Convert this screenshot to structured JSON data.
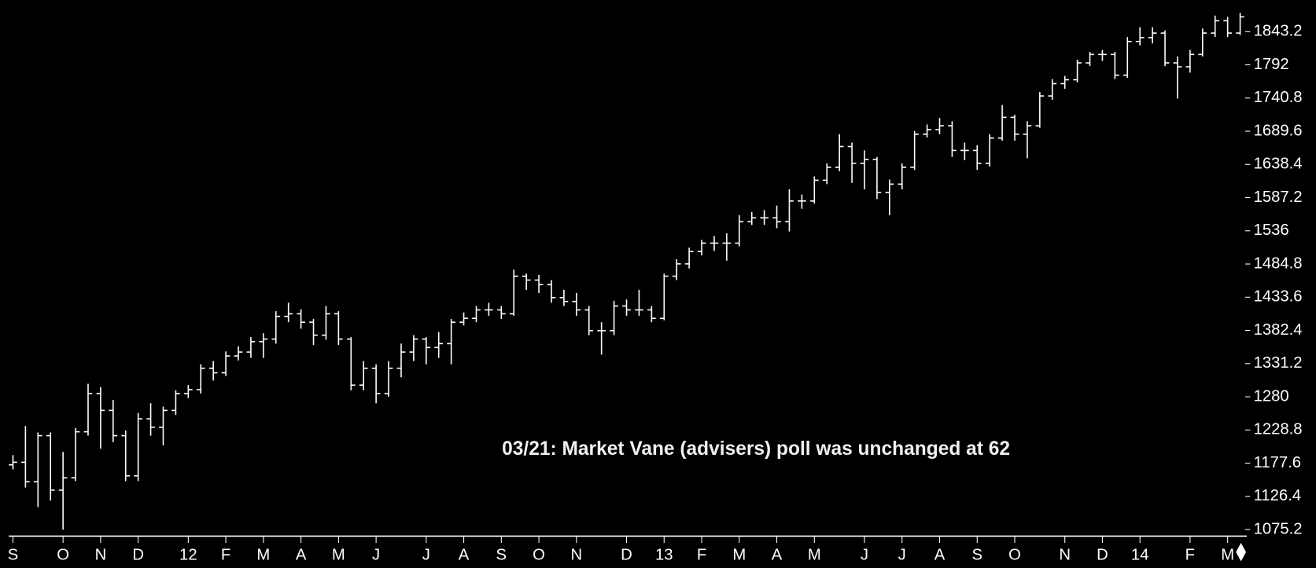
{
  "chart_data": {
    "type": "ohlc",
    "color": "#ffffff",
    "annotation": "03/21: Market Vane (advisers) poll was unchanged at 62",
    "categories": [
      "S",
      null,
      null,
      null,
      "O",
      null,
      null,
      "N",
      null,
      null,
      "D",
      null,
      null,
      null,
      "12",
      null,
      null,
      "F",
      null,
      null,
      "M",
      null,
      null,
      "A",
      null,
      null,
      "M",
      null,
      null,
      "J",
      null,
      null,
      null,
      "J",
      null,
      null,
      "A",
      null,
      null,
      "S",
      null,
      null,
      "O",
      null,
      null,
      "N",
      null,
      null,
      null,
      "D",
      null,
      null,
      "13",
      null,
      null,
      "F",
      null,
      null,
      "M",
      null,
      null,
      "A",
      null,
      null,
      "M",
      null,
      null,
      null,
      "J",
      null,
      null,
      "J",
      null,
      null,
      "A",
      null,
      null,
      "S",
      null,
      null,
      "O",
      null,
      null,
      null,
      "N",
      null,
      null,
      "D",
      null,
      null,
      "14",
      null,
      null,
      null,
      "F",
      null,
      null,
      "M",
      null
    ],
    "open": [
      1175,
      1179,
      1149,
      1220,
      1136,
      1155,
      1226,
      1285,
      1259,
      1220,
      1158,
      1246,
      1233,
      1259,
      1285,
      1291,
      1324,
      1317,
      1343,
      1349,
      1365,
      1369,
      1404,
      1408,
      1395,
      1375,
      1408,
      1369,
      1298,
      1324,
      1285,
      1324,
      1349,
      1369,
      1356,
      1362,
      1395,
      1401,
      1414,
      1414,
      1408,
      1466,
      1460,
      1453,
      1433,
      1427,
      1414,
      1382,
      1382,
      1420,
      1414,
      1414,
      1401,
      1466,
      1485,
      1504,
      1517,
      1517,
      1517,
      1550,
      1556,
      1556,
      1550,
      1582,
      1582,
      1614,
      1634,
      1666,
      1640,
      1646,
      1595,
      1608,
      1634,
      1685,
      1692,
      1698,
      1660,
      1660,
      1640,
      1679,
      1711,
      1685,
      1698,
      1744,
      1763,
      1769,
      1795,
      1808,
      1808,
      1776,
      1828,
      1834,
      1841,
      1795,
      1789,
      1808,
      1841,
      1860,
      1841
    ],
    "high": [
      1190,
      1235,
      1225,
      1225,
      1195,
      1232,
      1300,
      1295,
      1275,
      1228,
      1255,
      1270,
      1265,
      1290,
      1298,
      1330,
      1335,
      1350,
      1358,
      1372,
      1378,
      1412,
      1425,
      1415,
      1400,
      1420,
      1412,
      1372,
      1335,
      1330,
      1335,
      1362,
      1375,
      1372,
      1380,
      1400,
      1410,
      1420,
      1425,
      1420,
      1476,
      1470,
      1468,
      1460,
      1445,
      1440,
      1420,
      1395,
      1428,
      1430,
      1445,
      1420,
      1470,
      1492,
      1510,
      1522,
      1528,
      1532,
      1560,
      1565,
      1568,
      1575,
      1600,
      1592,
      1620,
      1640,
      1685,
      1672,
      1660,
      1650,
      1615,
      1640,
      1690,
      1700,
      1710,
      1705,
      1672,
      1668,
      1685,
      1730,
      1715,
      1705,
      1750,
      1770,
      1775,
      1800,
      1812,
      1815,
      1812,
      1835,
      1850,
      1850,
      1845,
      1805,
      1815,
      1848,
      1868,
      1866,
      1872
    ],
    "low": [
      1168,
      1140,
      1110,
      1120,
      1075,
      1150,
      1220,
      1200,
      1210,
      1150,
      1150,
      1220,
      1205,
      1252,
      1278,
      1285,
      1305,
      1312,
      1336,
      1340,
      1340,
      1362,
      1395,
      1385,
      1360,
      1368,
      1360,
      1290,
      1290,
      1270,
      1280,
      1310,
      1335,
      1330,
      1340,
      1330,
      1390,
      1395,
      1405,
      1400,
      1405,
      1445,
      1440,
      1425,
      1420,
      1405,
      1375,
      1345,
      1375,
      1405,
      1405,
      1395,
      1398,
      1460,
      1478,
      1498,
      1505,
      1490,
      1512,
      1545,
      1545,
      1540,
      1535,
      1570,
      1578,
      1608,
      1628,
      1610,
      1600,
      1585,
      1560,
      1600,
      1630,
      1680,
      1685,
      1650,
      1645,
      1630,
      1635,
      1675,
      1675,
      1648,
      1695,
      1738,
      1755,
      1765,
      1790,
      1798,
      1770,
      1772,
      1822,
      1825,
      1790,
      1740,
      1780,
      1805,
      1835,
      1835,
      1838
    ],
    "close": [
      1179,
      1149,
      1220,
      1136,
      1155,
      1226,
      1285,
      1259,
      1220,
      1158,
      1246,
      1233,
      1259,
      1285,
      1291,
      1324,
      1317,
      1343,
      1349,
      1365,
      1369,
      1404,
      1408,
      1395,
      1375,
      1408,
      1369,
      1298,
      1324,
      1285,
      1324,
      1349,
      1369,
      1356,
      1362,
      1395,
      1401,
      1414,
      1414,
      1408,
      1466,
      1460,
      1453,
      1433,
      1427,
      1414,
      1382,
      1382,
      1420,
      1414,
      1414,
      1401,
      1466,
      1485,
      1504,
      1517,
      1517,
      1517,
      1550,
      1556,
      1556,
      1550,
      1582,
      1582,
      1614,
      1634,
      1666,
      1640,
      1646,
      1595,
      1608,
      1634,
      1685,
      1692,
      1698,
      1660,
      1660,
      1640,
      1679,
      1711,
      1685,
      1698,
      1744,
      1763,
      1769,
      1795,
      1808,
      1808,
      1776,
      1828,
      1834,
      1841,
      1795,
      1789,
      1808,
      1841,
      1860,
      1841,
      1866
    ],
    "ylim": [
      1065,
      1892
    ],
    "yticks": [
      1075.2,
      1126.4,
      1177.6,
      1228.8,
      1280,
      1331.2,
      1382.4,
      1433.6,
      1484.8,
      1536,
      1587.2,
      1638.4,
      1689.6,
      1740.8,
      1792,
      1843.2
    ]
  }
}
